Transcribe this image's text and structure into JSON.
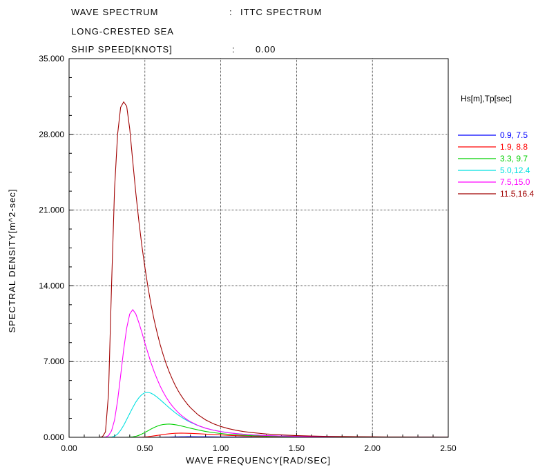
{
  "header": {
    "spectrum_label": "WAVE SPECTRUM",
    "spectrum_sep": ":",
    "spectrum_value": "ITTC SPECTRUM",
    "sea_label": "LONG-CRESTED SEA",
    "speed_label": "SHIP SPEED[KNOTS]",
    "speed_sep": ":",
    "speed_value": "0.00"
  },
  "chart_data": {
    "type": "line",
    "title": "",
    "xlabel": "WAVE FREQUENCY[RAD/SEC]",
    "ylabel": "SPECTRAL  DENSITY[m^2-sec]",
    "xlim": [
      0,
      2.5
    ],
    "ylim": [
      0,
      35
    ],
    "x_ticks": [
      "0.00",
      "0.50",
      "1.00",
      "1.50",
      "2.00",
      "2.50"
    ],
    "y_ticks": [
      "0.000",
      "7.000",
      "14.000",
      "21.000",
      "28.000",
      "35.000"
    ],
    "grid": true,
    "legend_title": "Hs[m],Tp[sec]",
    "legend_position": "right",
    "x": [
      0.0,
      0.05,
      0.1,
      0.15,
      0.2,
      0.22,
      0.24,
      0.26,
      0.28,
      0.3,
      0.32,
      0.34,
      0.36,
      0.38,
      0.4,
      0.42,
      0.44,
      0.46,
      0.48,
      0.5,
      0.52,
      0.54,
      0.56,
      0.58,
      0.6,
      0.62,
      0.64,
      0.66,
      0.68,
      0.7,
      0.72,
      0.74,
      0.76,
      0.78,
      0.8,
      0.85,
      0.9,
      0.95,
      1.0,
      1.05,
      1.1,
      1.15,
      1.2,
      1.3,
      1.4,
      1.5,
      1.6,
      1.7,
      1.8,
      1.9,
      2.0,
      2.1,
      2.2,
      2.3,
      2.4,
      2.5
    ],
    "series": [
      {
        "name": "0.9, 7.5",
        "color": "#0000ff",
        "values": [
          0,
          0,
          0,
          0,
          0,
          0,
          0,
          0,
          0,
          0,
          0,
          0,
          0,
          0,
          0,
          0,
          0,
          0,
          0,
          0,
          0,
          0,
          0,
          0,
          0.001,
          0.004,
          0.009,
          0.016,
          0.025,
          0.033,
          0.04,
          0.045,
          0.048,
          0.049,
          0.049,
          0.046,
          0.041,
          0.035,
          0.03,
          0.025,
          0.021,
          0.017,
          0.014,
          0.01,
          0.007,
          0.005,
          0.004,
          0.003,
          0.002,
          0.0015,
          0.001,
          0.0008,
          0.0006,
          0.0005,
          0.0004,
          0.0003
        ]
      },
      {
        "name": "1.9, 8.8",
        "color": "#ff0000",
        "values": [
          0,
          0,
          0,
          0,
          0,
          0,
          0,
          0,
          0,
          0,
          0,
          0,
          0,
          0,
          0,
          0,
          0,
          0.002,
          0.009,
          0.026,
          0.054,
          0.09,
          0.13,
          0.17,
          0.21,
          0.25,
          0.29,
          0.32,
          0.35,
          0.37,
          0.38,
          0.385,
          0.38,
          0.37,
          0.36,
          0.33,
          0.29,
          0.25,
          0.215,
          0.18,
          0.15,
          0.125,
          0.105,
          0.074,
          0.052,
          0.038,
          0.028,
          0.021,
          0.016,
          0.012,
          0.009,
          0.007,
          0.0055,
          0.0044,
          0.0035,
          0.0028
        ]
      },
      {
        "name": "3.3, 9.7",
        "color": "#00d000",
        "values": [
          0,
          0,
          0,
          0,
          0,
          0,
          0,
          0,
          0,
          0,
          0,
          0,
          0,
          0.002,
          0.01,
          0.035,
          0.09,
          0.18,
          0.3,
          0.45,
          0.6,
          0.76,
          0.9,
          1.02,
          1.12,
          1.18,
          1.21,
          1.22,
          1.2,
          1.16,
          1.11,
          1.05,
          0.98,
          0.91,
          0.84,
          0.68,
          0.54,
          0.43,
          0.35,
          0.28,
          0.23,
          0.19,
          0.155,
          0.107,
          0.076,
          0.055,
          0.041,
          0.031,
          0.024,
          0.018,
          0.014,
          0.011,
          0.009,
          0.0072,
          0.0058,
          0.0047
        ]
      },
      {
        "name": "5.0,12.4",
        "color": "#00e0e0",
        "values": [
          0,
          0,
          0,
          0,
          0,
          0,
          0,
          0.002,
          0.02,
          0.1,
          0.3,
          0.65,
          1.1,
          1.65,
          2.2,
          2.75,
          3.25,
          3.65,
          3.95,
          4.12,
          4.15,
          4.08,
          3.92,
          3.72,
          3.48,
          3.23,
          2.98,
          2.73,
          2.5,
          2.27,
          2.06,
          1.87,
          1.69,
          1.53,
          1.39,
          1.08,
          0.84,
          0.66,
          0.53,
          0.43,
          0.35,
          0.285,
          0.235,
          0.162,
          0.115,
          0.084,
          0.062,
          0.047,
          0.036,
          0.028,
          0.022,
          0.017,
          0.0138,
          0.011,
          0.0089,
          0.0072
        ]
      },
      {
        "name": "7.5,15.0",
        "color": "#ff00ff",
        "values": [
          0,
          0,
          0,
          0,
          0,
          0.002,
          0.02,
          0.15,
          0.6,
          1.6,
          3.4,
          5.7,
          8.1,
          10.1,
          11.4,
          11.8,
          11.4,
          10.6,
          9.7,
          8.7,
          7.8,
          6.9,
          6.1,
          5.4,
          4.75,
          4.2,
          3.7,
          3.27,
          2.9,
          2.57,
          2.28,
          2.03,
          1.81,
          1.61,
          1.44,
          1.09,
          0.84,
          0.66,
          0.52,
          0.42,
          0.34,
          0.28,
          0.23,
          0.16,
          0.115,
          0.084,
          0.062,
          0.047,
          0.036,
          0.028,
          0.022,
          0.017,
          0.0138,
          0.011,
          0.0089,
          0.0072
        ]
      },
      {
        "name": "11.5,16.4",
        "color": "#a00000",
        "values": [
          0,
          0,
          0,
          0,
          0,
          0.05,
          0.5,
          4.0,
          14.0,
          23.0,
          28.0,
          30.5,
          31.0,
          30.6,
          28.5,
          25.5,
          22.6,
          20.0,
          17.7,
          15.7,
          13.9,
          12.3,
          10.9,
          9.7,
          8.6,
          7.65,
          6.8,
          6.05,
          5.4,
          4.8,
          4.28,
          3.83,
          3.42,
          3.06,
          2.74,
          2.08,
          1.61,
          1.26,
          1.0,
          0.8,
          0.65,
          0.53,
          0.44,
          0.305,
          0.217,
          0.158,
          0.117,
          0.088,
          0.067,
          0.052,
          0.041,
          0.032,
          0.026,
          0.021,
          0.017,
          0.014
        ]
      }
    ]
  }
}
